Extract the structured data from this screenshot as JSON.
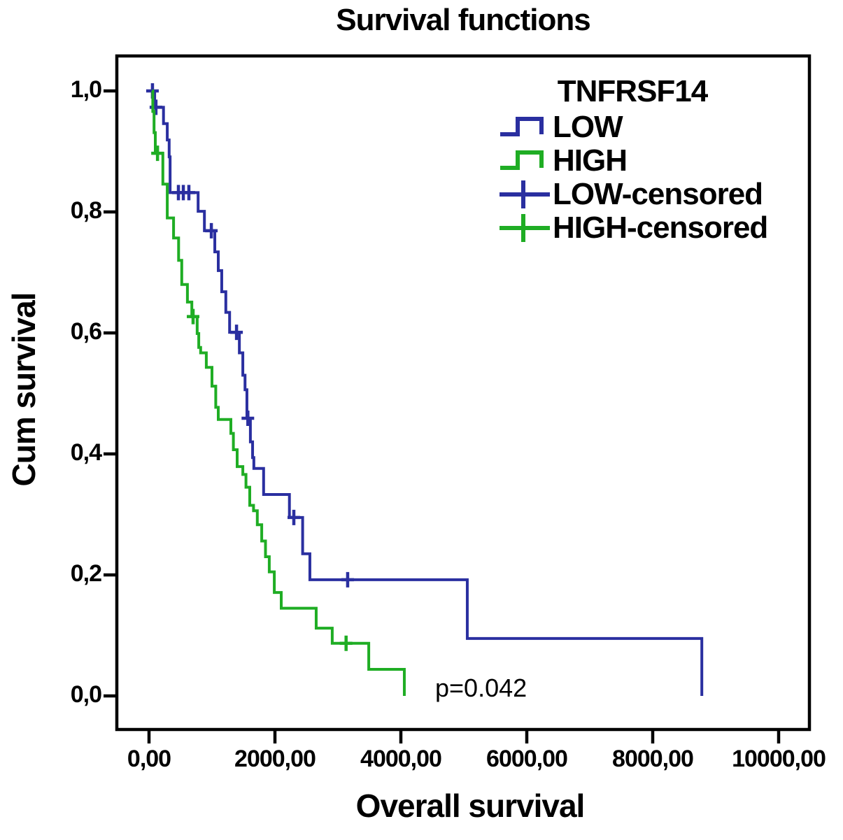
{
  "title": "Survival functions",
  "axes": {
    "x": {
      "label": "Overall survival",
      "ticks": [
        "0,00",
        "2000,00",
        "4000,00",
        "6000,00",
        "8000,00",
        "10000,00"
      ],
      "tick_values": [
        0,
        2000,
        4000,
        6000,
        8000,
        10000
      ]
    },
    "y": {
      "label": "Cum survival",
      "ticks": [
        "1,0",
        "0,8",
        "0,6",
        "0,4",
        "0,2",
        "0,0"
      ],
      "tick_values": [
        1.0,
        0.8,
        0.6,
        0.4,
        0.2,
        0.0
      ]
    }
  },
  "legend": {
    "title": "TNFRSF14",
    "items": [
      {
        "label": "LOW",
        "color": "#2a2fa0",
        "symbol": "step-line"
      },
      {
        "label": "HIGH",
        "color": "#1fad24",
        "symbol": "step-line"
      },
      {
        "label": "LOW-censored",
        "color": "#2a2fa0",
        "symbol": "censor-plus"
      },
      {
        "label": "HIGH-censored",
        "color": "#1fad24",
        "symbol": "censor-plus"
      }
    ]
  },
  "annotation": {
    "p_value": "p=0.042"
  },
  "colors": {
    "low": "#2a2fa0",
    "high": "#1fad24",
    "axis": "#000000"
  },
  "chart_data": {
    "type": "line",
    "subtype": "kaplan-meier-step",
    "title": "Survival functions",
    "xlabel": "Overall survival",
    "ylabel": "Cum survival",
    "xlim": [
      0,
      10000
    ],
    "ylim": [
      0.0,
      1.0
    ],
    "x_tick_values": [
      0,
      2000,
      4000,
      6000,
      8000,
      10000
    ],
    "y_tick_values": [
      1.0,
      0.8,
      0.6,
      0.4,
      0.2,
      0.0
    ],
    "grid": false,
    "legend_position": "upper right",
    "p_value": 0.042,
    "series": [
      {
        "name": "LOW",
        "color": "#2a2fa0",
        "steps": [
          [
            50,
            1.0
          ],
          [
            90,
            0.973
          ],
          [
            230,
            0.946
          ],
          [
            290,
            0.919
          ],
          [
            320,
            0.891
          ],
          [
            335,
            0.832
          ],
          [
            780,
            0.801
          ],
          [
            880,
            0.769
          ],
          [
            1045,
            0.734
          ],
          [
            1100,
            0.703
          ],
          [
            1155,
            0.668
          ],
          [
            1220,
            0.634
          ],
          [
            1280,
            0.601
          ],
          [
            1435,
            0.567
          ],
          [
            1490,
            0.53
          ],
          [
            1525,
            0.506
          ],
          [
            1555,
            0.459
          ],
          [
            1610,
            0.42
          ],
          [
            1645,
            0.394
          ],
          [
            1665,
            0.376
          ],
          [
            1820,
            0.333
          ],
          [
            2230,
            0.295
          ],
          [
            2440,
            0.235
          ],
          [
            2555,
            0.192
          ],
          [
            5055,
            0.095
          ],
          [
            8780,
            0.0
          ]
        ],
        "censored": [
          [
            55,
            1.0
          ],
          [
            110,
            0.973
          ],
          [
            467,
            0.832
          ],
          [
            545,
            0.832
          ],
          [
            633,
            0.832
          ],
          [
            990,
            0.769
          ],
          [
            1390,
            0.601
          ],
          [
            1570,
            0.459
          ],
          [
            2300,
            0.295
          ],
          [
            3155,
            0.192
          ]
        ]
      },
      {
        "name": "HIGH",
        "color": "#1fad24",
        "steps": [
          [
            50,
            1.0
          ],
          [
            60,
            0.966
          ],
          [
            80,
            0.931
          ],
          [
            100,
            0.897
          ],
          [
            220,
            0.846
          ],
          [
            290,
            0.79
          ],
          [
            390,
            0.757
          ],
          [
            470,
            0.72
          ],
          [
            520,
            0.68
          ],
          [
            610,
            0.651
          ],
          [
            680,
            0.627
          ],
          [
            765,
            0.599
          ],
          [
            790,
            0.576
          ],
          [
            820,
            0.567
          ],
          [
            910,
            0.543
          ],
          [
            1000,
            0.512
          ],
          [
            1060,
            0.477
          ],
          [
            1100,
            0.457
          ],
          [
            1300,
            0.434
          ],
          [
            1340,
            0.407
          ],
          [
            1400,
            0.379
          ],
          [
            1490,
            0.366
          ],
          [
            1540,
            0.345
          ],
          [
            1600,
            0.315
          ],
          [
            1660,
            0.306
          ],
          [
            1720,
            0.283
          ],
          [
            1790,
            0.256
          ],
          [
            1850,
            0.23
          ],
          [
            1910,
            0.205
          ],
          [
            1990,
            0.171
          ],
          [
            2100,
            0.145
          ],
          [
            2655,
            0.112
          ],
          [
            2910,
            0.087
          ],
          [
            3490,
            0.044
          ],
          [
            4055,
            0.0
          ]
        ],
        "censored": [
          [
            135,
            0.897
          ],
          [
            700,
            0.627
          ],
          [
            3130,
            0.087
          ]
        ]
      }
    ]
  }
}
